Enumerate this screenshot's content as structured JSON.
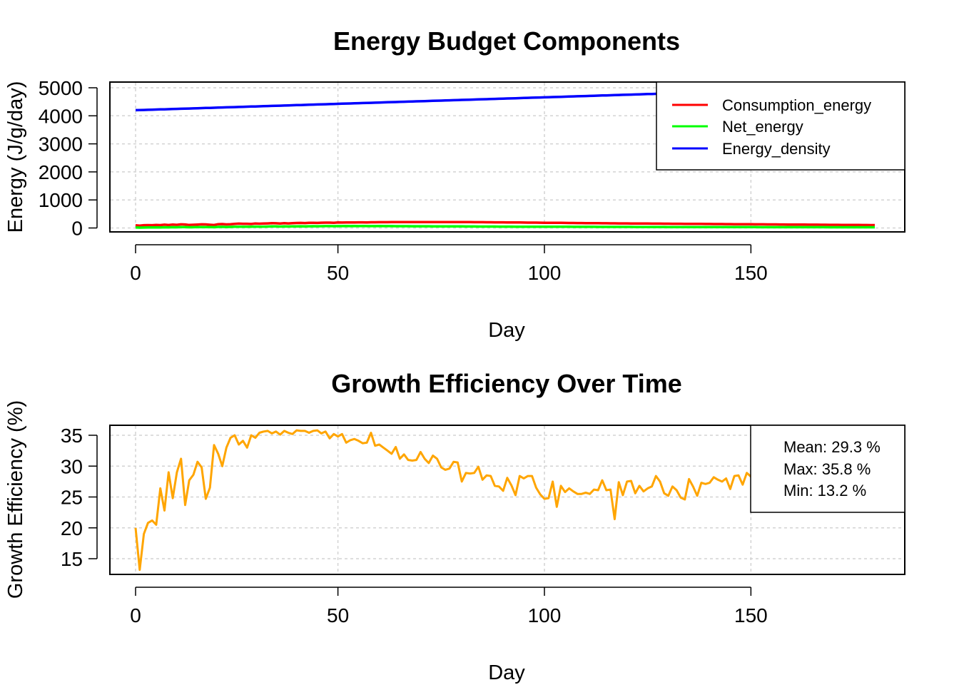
{
  "chart_data": [
    {
      "type": "line",
      "title": "Energy Budget Components",
      "xlabel": "Day",
      "ylabel": "Energy (J/g/day)",
      "xlim": [
        1,
        180
      ],
      "ylim": [
        0,
        5000
      ],
      "xticks": [
        0,
        50,
        100,
        150
      ],
      "yticks": [
        0,
        1000,
        2000,
        3000,
        4000,
        5000
      ],
      "grid": true,
      "legend_position": "top-right",
      "x_start": 1,
      "x_step": 1,
      "series": [
        {
          "name": "Consumption_energy",
          "color": "#ff0000",
          "values": [
            95,
            85,
            98,
            102,
            100,
            110,
            103,
            118,
            105,
            120,
            112,
            130,
            125,
            108,
            115,
            123,
            130,
            127,
            115,
            104,
            135,
            140,
            128,
            132,
            145,
            156,
            150,
            149,
            142,
            160,
            153,
            158,
            162,
            170,
            168,
            160,
            172,
            164,
            170,
            177,
            180,
            175,
            183,
            186,
            181,
            188,
            192,
            190,
            187,
            195,
            194,
            197,
            196,
            198,
            200,
            201,
            199,
            203,
            204,
            205,
            206,
            207,
            208,
            209,
            210,
            210,
            211,
            211,
            212,
            212,
            212,
            212,
            212,
            212,
            211,
            211,
            211,
            210,
            210,
            209,
            208,
            208,
            207,
            206,
            205,
            204,
            203,
            202,
            201,
            200,
            198,
            197,
            196,
            195,
            194,
            192,
            191,
            190,
            189,
            187,
            186,
            184,
            183,
            182,
            180,
            179,
            177,
            176,
            175,
            173,
            172,
            171,
            170,
            168,
            167,
            166,
            165,
            164,
            163,
            162,
            161,
            160,
            159,
            158,
            157,
            156,
            155,
            154,
            153,
            152,
            151,
            150,
            149,
            148,
            147,
            146,
            145,
            144,
            143,
            142,
            141,
            140,
            139,
            138,
            137,
            136,
            135,
            134,
            133,
            132,
            131,
            130,
            129,
            128,
            127,
            126,
            125,
            124,
            123,
            122,
            121,
            120,
            119,
            118,
            117,
            116,
            115,
            114,
            113,
            112,
            111,
            110,
            109,
            108,
            107,
            106,
            105,
            104,
            103,
            102
          ]
        },
        {
          "name": "Net_energy",
          "color": "#00ff00",
          "values": [
            18,
            12,
            16,
            20,
            21,
            22,
            21,
            26,
            24,
            29,
            25,
            32,
            31,
            25,
            29,
            31,
            33,
            33,
            30,
            27,
            38,
            40,
            35,
            38,
            42,
            46,
            45,
            45,
            44,
            50,
            47,
            49,
            52,
            55,
            55,
            52,
            56,
            54,
            57,
            59,
            60,
            59,
            62,
            63,
            62,
            64,
            66,
            65,
            64,
            66,
            66,
            68,
            67,
            68,
            67,
            68,
            66,
            67,
            66,
            69,
            67,
            66,
            65,
            64,
            63,
            63,
            63,
            61,
            61,
            60,
            60,
            60,
            59,
            59,
            58,
            58,
            57,
            57,
            56,
            55,
            54,
            54,
            53,
            52,
            51,
            51,
            50,
            50,
            49,
            49,
            48,
            48,
            47,
            47,
            46,
            46,
            45,
            45,
            44,
            44,
            44,
            43,
            43,
            42,
            42,
            42,
            41,
            41,
            41,
            40,
            40,
            40,
            39,
            39,
            39,
            38,
            38,
            38,
            37,
            37,
            37,
            36,
            36,
            36,
            36,
            35,
            35,
            35,
            35,
            34,
            34,
            34,
            34,
            33,
            33,
            33,
            33,
            32,
            32,
            32,
            32,
            31,
            31,
            31,
            31,
            31,
            30,
            30,
            30,
            30,
            30,
            29,
            29,
            29,
            29,
            29,
            28,
            28,
            28,
            28,
            28,
            28,
            27,
            27,
            27,
            27,
            27,
            27,
            26,
            26,
            26,
            26,
            26,
            26,
            26,
            25,
            25,
            25,
            25,
            25
          ]
        },
        {
          "name": "Energy_density",
          "color": "#0000ff",
          "values_linear": {
            "from": 4200,
            "to": 5030
          }
        }
      ]
    },
    {
      "type": "line",
      "title": "Growth Efficiency Over Time",
      "xlabel": "Day",
      "ylabel": "Growth Efficiency (%)",
      "xlim": [
        1,
        180
      ],
      "ylim": [
        12.5,
        36.5
      ],
      "xticks": [
        0,
        50,
        100,
        150
      ],
      "yticks": [
        15,
        20,
        25,
        30,
        35
      ],
      "grid": true,
      "legend_position": "top-right",
      "x_start": 1,
      "x_step": 1,
      "series": [
        {
          "color": "#ffa500",
          "values": [
            20.0,
            13.2,
            19.0,
            20.8,
            21.2,
            20.5,
            26.4,
            22.8,
            29.0,
            24.8,
            29.0,
            31.2,
            23.7,
            27.7,
            28.6,
            30.7,
            29.8,
            24.7,
            26.5,
            33.4,
            32.0,
            30.0,
            33.0,
            34.6,
            35.0,
            33.5,
            34.1,
            33.0,
            35.0,
            34.6,
            35.4,
            35.6,
            35.7,
            35.3,
            35.6,
            35.1,
            35.7,
            35.4,
            35.2,
            35.8,
            35.7,
            35.7,
            35.4,
            35.7,
            35.8,
            35.3,
            35.6,
            34.5,
            35.2,
            34.8,
            35.2,
            33.8,
            34.2,
            34.4,
            34.1,
            33.7,
            33.8,
            35.4,
            33.3,
            33.5,
            33.0,
            32.5,
            32.0,
            33.1,
            31.2,
            31.9,
            31.0,
            30.9,
            31.0,
            32.3,
            31.2,
            30.5,
            31.7,
            31.2,
            29.8,
            29.4,
            29.6,
            30.7,
            30.6,
            27.5,
            28.9,
            28.8,
            28.9,
            29.9,
            27.8,
            28.5,
            28.4,
            26.8,
            26.7,
            26.0,
            28.1,
            26.9,
            25.3,
            28.4,
            28.0,
            28.4,
            28.4,
            26.5,
            25.4,
            24.7,
            24.8,
            27.5,
            23.4,
            26.8,
            25.8,
            26.4,
            25.9,
            25.5,
            25.5,
            25.7,
            25.5,
            26.2,
            26.1,
            27.7,
            26.1,
            26.2,
            21.4,
            27.4,
            25.3,
            27.5,
            27.6,
            25.6,
            26.8,
            25.9,
            26.4,
            26.7,
            28.4,
            27.5,
            25.6,
            25.2,
            26.7,
            26.1,
            24.9,
            24.6,
            27.9,
            26.7,
            25.2,
            27.3,
            27.1,
            27.3,
            28.2,
            27.8,
            27.5,
            28.0,
            26.3,
            28.4,
            28.5,
            27.0,
            28.9,
            28.3,
            28.6,
            29.0,
            28.4,
            28.7,
            29.2,
            28.6,
            28.9,
            29.3,
            28.8,
            29.0,
            29.4,
            28.7,
            29.1,
            28.9,
            29.6,
            29.2,
            28.9,
            29.4,
            29.0,
            29.3,
            28.7,
            29.5,
            29.1,
            29.0,
            29.3,
            29.2,
            29.5,
            29.0
          ]
        }
      ],
      "stats": [
        "Mean: 29.3 %",
        "Max: 35.8 %",
        "Min: 13.2 %"
      ]
    }
  ]
}
